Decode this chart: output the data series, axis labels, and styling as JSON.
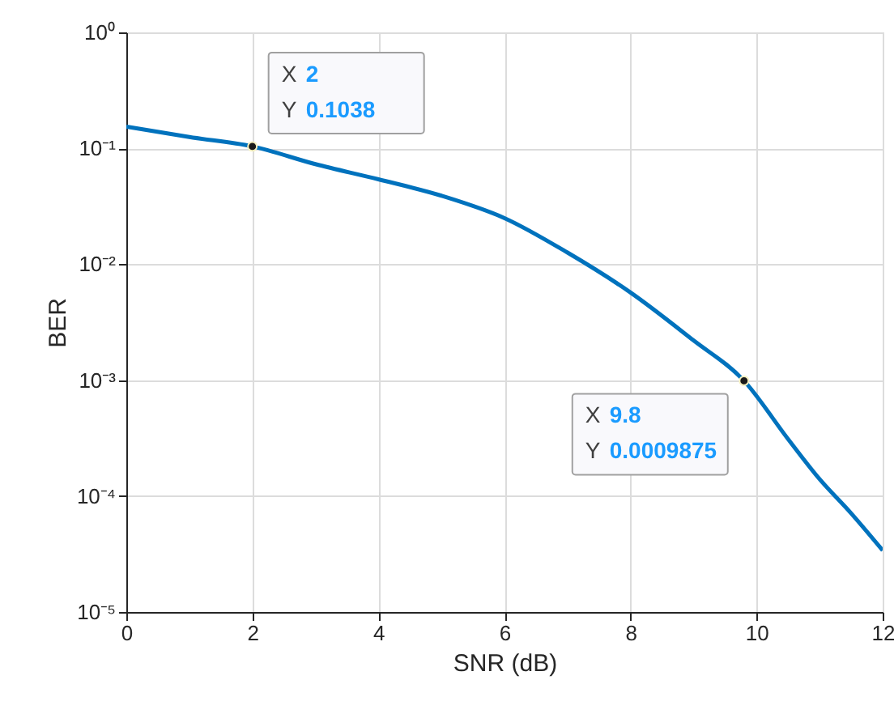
{
  "chart_data": {
    "type": "line",
    "xlabel": "SNR (dB)",
    "ylabel": "BER",
    "log": "y",
    "x": [
      0,
      1,
      2,
      3,
      4,
      5,
      6,
      7,
      8,
      9,
      9.8,
      10.5,
      11,
      11.5,
      12
    ],
    "series": [
      {
        "color": "#0072bd",
        "values": [
          0.154,
          0.125,
          0.1038,
          0.073,
          0.054,
          0.039,
          0.025,
          0.0126,
          0.0057,
          0.0022,
          0.0009875,
          0.00031,
          0.00014,
          7.1e-05,
          3.4e-05
        ]
      }
    ],
    "xlim": [
      0,
      12
    ],
    "xticks": [
      0,
      2,
      4,
      6,
      8,
      10,
      12
    ],
    "ylim": [
      1e-05,
      1
    ],
    "yticks": [
      {
        "value": 1e-05,
        "label": "10⁻⁵"
      },
      {
        "value": 0.0001,
        "label": "10⁻⁴"
      },
      {
        "value": 0.001,
        "label": "10⁻³"
      },
      {
        "value": 0.01,
        "label": "10⁻²"
      },
      {
        "value": 0.1,
        "label": "10⁻¹"
      },
      {
        "value": 1,
        "label": "10⁰"
      }
    ],
    "grid": true,
    "line_style": "solid",
    "annotations": [
      {
        "text": "X 2\nY 0.1038",
        "x": 2,
        "y": 0.1038
      },
      {
        "text": "X 9.8\nY 0.0009875",
        "x": 9.8,
        "y": 0.0009875
      }
    ]
  }
}
